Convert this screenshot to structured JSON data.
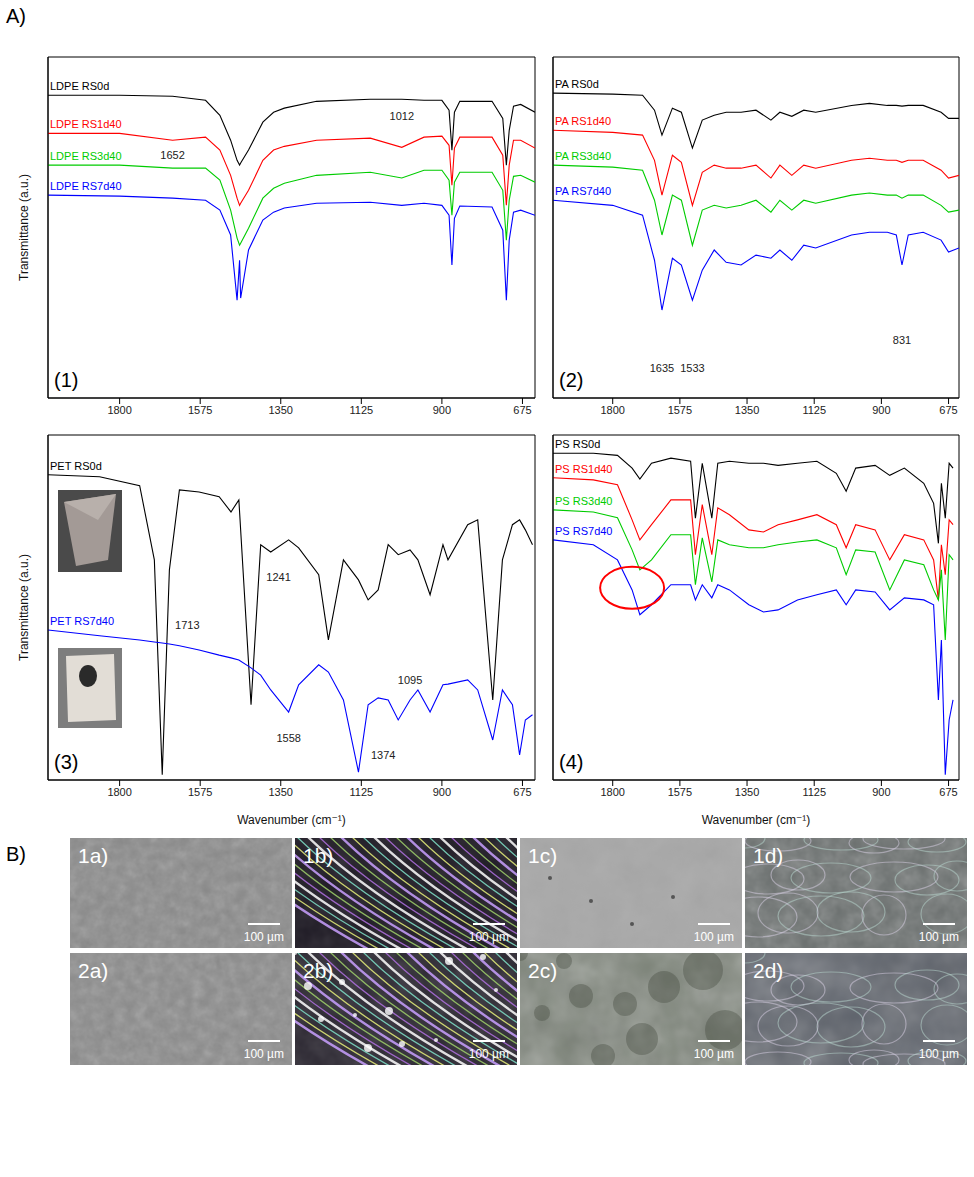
{
  "panel_labels": [
    "A)",
    "B)"
  ],
  "chart_data": [
    {
      "type": "line",
      "panel": "(1)",
      "y_label": "Transmittance (a.u.)",
      "xlim": [
        2000,
        640
      ],
      "xticks": [
        1800,
        1575,
        1350,
        1125,
        900,
        675
      ],
      "ylim": [
        0,
        100
      ],
      "tick_labels": "x",
      "x": [
        2000,
        1800,
        1652,
        1560,
        1520,
        1490,
        1472,
        1465,
        1462,
        1440,
        1400,
        1370,
        1340,
        1250,
        1100,
        1012,
        950,
        900,
        880,
        872,
        865,
        850,
        760,
        730,
        720,
        712,
        700,
        680,
        640
      ],
      "series": [
        {
          "name": "LDPE RS0d",
          "color": "#000000",
          "values": [
            88.8,
            88.8,
            88.5,
            87.3,
            82.9,
            75.6,
            69.7,
            68.3,
            68.9,
            72.7,
            80.9,
            83.8,
            85.0,
            87.0,
            87.6,
            87.6,
            87.3,
            87.3,
            84.4,
            72.7,
            83.8,
            87.0,
            87.0,
            82.0,
            68.3,
            78.5,
            85.6,
            86.1,
            83.8
          ]
        },
        {
          "name": "LDPE RS1d40",
          "color": "#ff0000",
          "values": [
            77.6,
            77.6,
            75.6,
            76.5,
            72.7,
            65.3,
            58.6,
            56.5,
            57.1,
            60.9,
            69.7,
            72.7,
            73.8,
            75.6,
            76.2,
            73.5,
            76.5,
            76.8,
            74.1,
            62.4,
            73.3,
            76.5,
            76.5,
            71.2,
            56.5,
            68.3,
            75.6,
            75.6,
            73.3
          ]
        },
        {
          "name": "LDPE RS3d40",
          "color": "#00cc00",
          "values": [
            68.3,
            68.3,
            67.4,
            67.4,
            63.9,
            55.1,
            46.9,
            44.8,
            45.4,
            49.8,
            58.6,
            61.5,
            63.0,
            65.3,
            66.2,
            64.5,
            66.8,
            66.8,
            63.9,
            53.6,
            63.3,
            66.2,
            66.2,
            60.9,
            46.3,
            58.0,
            65.0,
            65.3,
            63.3
          ]
        },
        {
          "name": "LDPE RS7d40",
          "color": "#0000ff",
          "values": [
            59.5,
            59.2,
            58.6,
            58.0,
            55.1,
            47.8,
            28.7,
            40.4,
            29.3,
            43.4,
            52.2,
            54.5,
            55.7,
            57.1,
            57.4,
            56.5,
            57.1,
            56.5,
            53.6,
            39.0,
            52.7,
            56.3,
            56.0,
            49.2,
            28.7,
            46.3,
            54.5,
            55.1,
            53.6
          ]
        }
      ],
      "annotations": [
        {
          "text": "1652",
          "x": 1652,
          "y": 71.2
        },
        {
          "text": "1012",
          "x": 1012,
          "y": 82.6
        }
      ]
    },
    {
      "type": "line",
      "panel": "(2)",
      "xlim": [
        2000,
        640
      ],
      "xticks": [
        1800,
        1575,
        1350,
        1125,
        900,
        675
      ],
      "ylim": [
        0,
        100
      ],
      "tick_labels": "x",
      "x": [
        2000,
        1800,
        1700,
        1660,
        1635,
        1600,
        1570,
        1533,
        1500,
        1460,
        1420,
        1370,
        1320,
        1270,
        1240,
        1200,
        1160,
        1120,
        1000,
        940,
        880,
        850,
        831,
        810,
        760,
        700,
        675,
        640
      ],
      "series": [
        {
          "name": "PA RS0d",
          "color": "#000000",
          "values": [
            89.4,
            89.1,
            88.8,
            84.4,
            77.1,
            85.0,
            83.8,
            73.3,
            81.5,
            82.9,
            83.8,
            83.8,
            84.4,
            81.5,
            83.8,
            82.6,
            84.4,
            83.8,
            85.8,
            86.4,
            85.8,
            85.8,
            85.6,
            85.8,
            85.8,
            83.8,
            82.0,
            82.0
          ]
        },
        {
          "name": "PA RS1d40",
          "color": "#ff0000",
          "values": [
            78.5,
            77.9,
            77.1,
            69.7,
            59.5,
            71.2,
            69.1,
            56.5,
            66.2,
            68.3,
            67.4,
            67.4,
            68.3,
            64.5,
            68.3,
            65.3,
            68.3,
            67.4,
            69.7,
            70.3,
            69.7,
            69.7,
            69.1,
            69.7,
            69.7,
            66.8,
            64.5,
            65.3
          ]
        },
        {
          "name": "PA RS3d40",
          "color": "#00cc00",
          "values": [
            68.3,
            67.7,
            66.8,
            58.0,
            47.8,
            59.5,
            58.0,
            44.8,
            55.1,
            56.5,
            55.7,
            56.5,
            58.0,
            54.5,
            58.0,
            55.1,
            58.0,
            57.1,
            59.5,
            60.1,
            59.5,
            59.5,
            58.6,
            59.5,
            59.5,
            56.5,
            54.5,
            55.1
          ]
        },
        {
          "name": "PA RS7d40",
          "color": "#0000ff",
          "values": [
            58.0,
            56.5,
            53.6,
            40.4,
            25.8,
            41.0,
            39.0,
            28.7,
            37.5,
            43.4,
            39.8,
            39.0,
            41.9,
            41.0,
            43.4,
            40.4,
            44.8,
            44.0,
            47.8,
            48.6,
            48.6,
            47.8,
            39.0,
            47.8,
            48.6,
            46.3,
            42.8,
            44.0
          ]
        }
      ],
      "annotations": [
        {
          "text": "1635",
          "x": 1635,
          "y": 8.8
        },
        {
          "text": "1533",
          "x": 1533,
          "y": 8.8
        },
        {
          "text": "831",
          "x": 831,
          "y": 17.0
        }
      ]
    },
    {
      "type": "line",
      "panel": "(3)",
      "y_label": "Transmittance (a.u.)",
      "x_label": "Wavenumber (cm⁻¹)",
      "xlim": [
        2000,
        640
      ],
      "xticks": [
        1800,
        1575,
        1350,
        1125,
        900,
        675
      ],
      "ylim": [
        0,
        100
      ],
      "tick_labels": "x",
      "x": [
        2000,
        1856,
        1744,
        1703,
        1681,
        1661,
        1633,
        1578,
        1522,
        1489,
        1467,
        1433,
        1406,
        1378,
        1328,
        1300,
        1244,
        1217,
        1175,
        1133,
        1106,
        1078,
        1050,
        1022,
        989,
        967,
        933,
        897,
        883,
        828,
        800,
        758,
        731,
        703,
        683,
        667,
        647
      ],
      "series": [
        {
          "name": "PET RS0d",
          "color": "#000000",
          "values": [
            88.5,
            87.9,
            85.3,
            63.8,
            1.5,
            60.9,
            84.1,
            83.5,
            82.1,
            77.7,
            81.2,
            21.8,
            68.2,
            66.1,
            69.6,
            67.3,
            59.5,
            40.6,
            63.8,
            58.0,
            52.2,
            55.1,
            68.2,
            65.3,
            66.7,
            63.8,
            53.7,
            68.2,
            63.8,
            74.0,
            75.4,
            23.2,
            63.8,
            74.0,
            75.4,
            72.5,
            68.2
          ]
        },
        {
          "name": "PET RS7d40",
          "color": "#0000ff",
          "values": [
            43.5,
            41.8,
            40.6,
            40.0,
            39.7,
            39.4,
            38.9,
            37.7,
            36.2,
            35.4,
            34.8,
            32.5,
            30.4,
            26.1,
            19.7,
            27.6,
            33.4,
            31.3,
            23.2,
            2.3,
            21.8,
            23.8,
            23.2,
            17.4,
            23.2,
            26.1,
            19.7,
            27.6,
            27.8,
            29.0,
            26.1,
            11.6,
            26.1,
            21.8,
            7.3,
            17.4,
            18.9
          ]
        }
      ],
      "annotations": [
        {
          "text": "1713",
          "x": 1611,
          "y": 45.0
        },
        {
          "text": "1241",
          "x": 1356,
          "y": 58.9
        },
        {
          "text": "1558",
          "x": 1328,
          "y": 12.2
        },
        {
          "text": "1374",
          "x": 1064,
          "y": 7.3
        },
        {
          "text": "1095",
          "x": 989,
          "y": 29.0
        }
      ]
    },
    {
      "type": "line",
      "panel": "(4)",
      "x_label": "Wavenumber (cm⁻¹)",
      "xlim": [
        2000,
        640
      ],
      "xticks": [
        1800,
        1575,
        1350,
        1125,
        900,
        675
      ],
      "ylim": [
        0,
        100
      ],
      "tick_labels": "x",
      "x": [
        2000,
        1865,
        1784,
        1735,
        1709,
        1670,
        1605,
        1539,
        1523,
        1500,
        1468,
        1448,
        1409,
        1344,
        1295,
        1246,
        1181,
        1116,
        1051,
        1018,
        986,
        921,
        872,
        823,
        758,
        725,
        709,
        699,
        686,
        673,
        660
      ],
      "series": [
        {
          "name": "PS RS0d",
          "color": "#000000",
          "values": [
            94.7,
            94.7,
            94.1,
            90.4,
            87.2,
            91.8,
            93.3,
            92.4,
            75.9,
            91.8,
            75.9,
            91.8,
            92.4,
            91.8,
            91.8,
            91.2,
            91.8,
            92.4,
            88.9,
            83.7,
            90.4,
            91.2,
            88.3,
            90.4,
            86.0,
            80.2,
            68.6,
            86.0,
            75.9,
            91.8,
            90.4
          ]
        },
        {
          "name": "PS RS1d40",
          "color": "#ff0000",
          "values": [
            87.6,
            87.0,
            85.6,
            75.4,
            69.6,
            74.0,
            81.2,
            81.2,
            65.3,
            79.8,
            65.3,
            78.9,
            76.9,
            72.5,
            71.9,
            74.0,
            75.4,
            76.9,
            74.0,
            67.3,
            74.0,
            72.5,
            63.8,
            71.1,
            69.6,
            63.8,
            52.2,
            68.2,
            59.5,
            75.4,
            74.0
          ]
        },
        {
          "name": "PS RS3d40",
          "color": "#00cc00",
          "values": [
            78.3,
            77.7,
            76.0,
            66.7,
            60.9,
            63.8,
            71.1,
            71.1,
            56.6,
            70.2,
            57.4,
            69.6,
            68.2,
            67.3,
            67.3,
            68.2,
            69.0,
            69.6,
            67.3,
            59.5,
            66.7,
            66.1,
            55.1,
            63.8,
            62.4,
            55.1,
            52.2,
            60.9,
            40.6,
            65.3,
            63.8
          ]
        },
        {
          "name": "PS RS7d40",
          "color": "#0000ff",
          "values": [
            69.6,
            68.2,
            63.8,
            55.1,
            47.9,
            50.8,
            56.6,
            56.6,
            52.2,
            56.6,
            52.8,
            56.6,
            55.1,
            50.8,
            48.7,
            49.3,
            52.2,
            53.7,
            55.1,
            50.8,
            55.1,
            54.5,
            49.3,
            52.8,
            52.2,
            50.8,
            23.2,
            40.6,
            1.5,
            17.4,
            23.2
          ]
        }
      ],
      "highlights": [
        {
          "x": 1735,
          "y": 55.7,
          "color": "#ff0000"
        }
      ]
    }
  ],
  "micrographs": {
    "rows": [
      [
        "1a)",
        "1b)",
        "1c)",
        "1d)"
      ],
      [
        "2a)",
        "2b)",
        "2c)",
        "2d)"
      ]
    ],
    "scale_bar": "100 µm"
  }
}
